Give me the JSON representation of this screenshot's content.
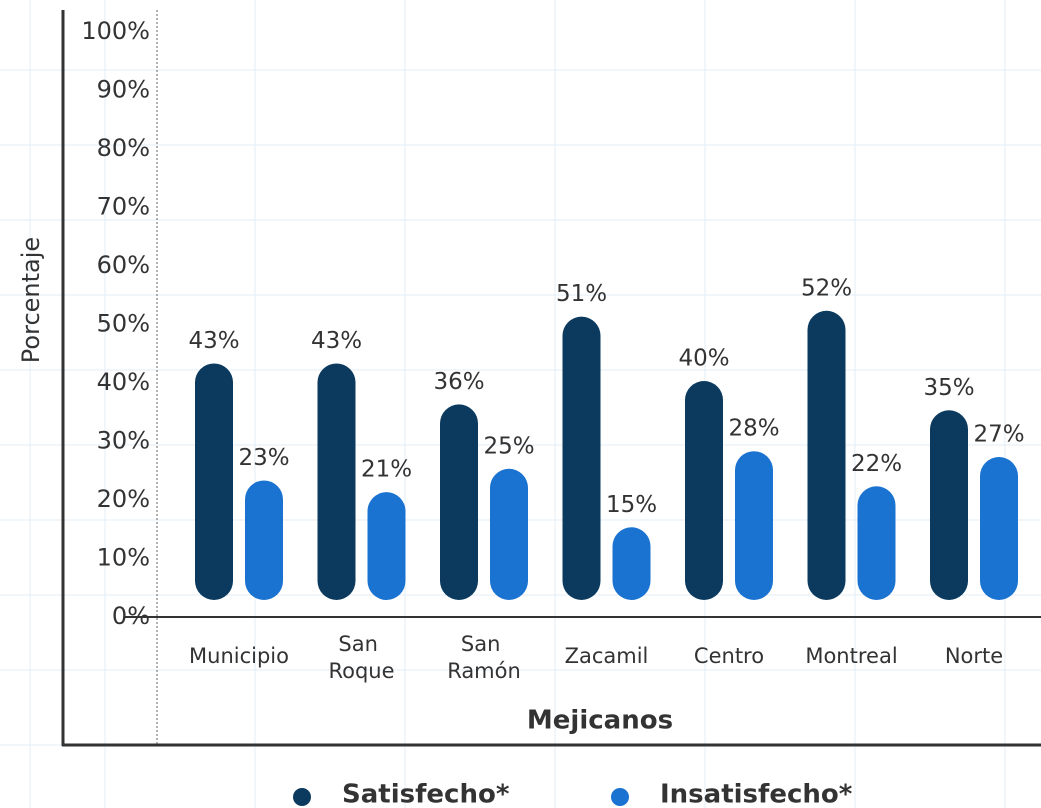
{
  "chart_data": {
    "type": "bar",
    "y_label": "Porcentaje",
    "x_label": "Mejicanos",
    "categories": [
      "Municipio",
      "San Roque",
      "San Ramón",
      "Zacamil",
      "Centro",
      "Montreal",
      "Norte"
    ],
    "series": [
      {
        "name": "Satisfecho*",
        "color": "#0b3a5e",
        "values": [
          43,
          43,
          36,
          51,
          40,
          52,
          35
        ],
        "value_labels": [
          "43%",
          "43%",
          "36%",
          "51%",
          "40%",
          "52%",
          "35%"
        ]
      },
      {
        "name": "Insatisfecho*",
        "color": "#1a73d0",
        "values": [
          23,
          21,
          25,
          15,
          28,
          22,
          27
        ],
        "value_labels": [
          "23%",
          "21%",
          "25%",
          "15%",
          "28%",
          "22%",
          "27%"
        ]
      }
    ],
    "ylim": [
      0,
      100
    ],
    "yticks": [
      {
        "value": 0,
        "label": "0%"
      },
      {
        "value": 10,
        "label": "10%"
      },
      {
        "value": 20,
        "label": "20%"
      },
      {
        "value": 30,
        "label": "30%"
      },
      {
        "value": 40,
        "label": "40%"
      },
      {
        "value": 50,
        "label": "50%"
      },
      {
        "value": 60,
        "label": "60%"
      },
      {
        "value": 70,
        "label": "70%"
      },
      {
        "value": 80,
        "label": "80%"
      },
      {
        "value": 90,
        "label": "90%"
      },
      {
        "value": 100,
        "label": "100%"
      }
    ]
  }
}
